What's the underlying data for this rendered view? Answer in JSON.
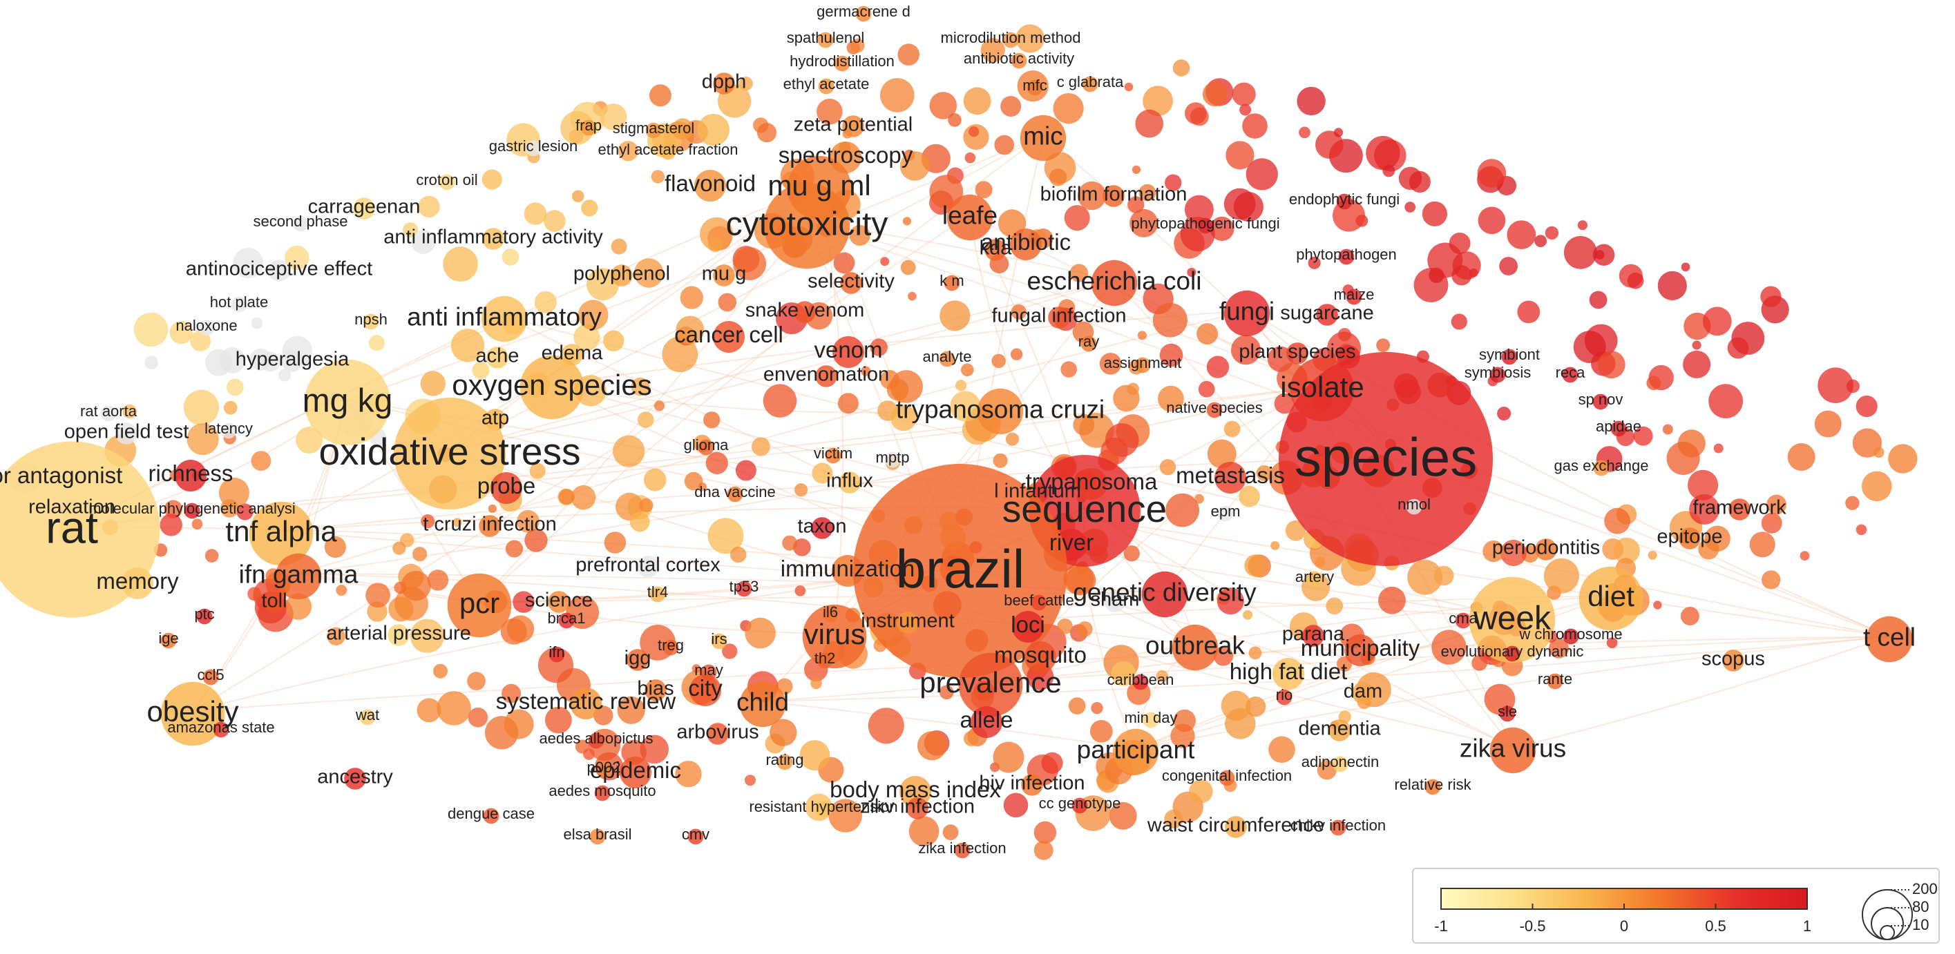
{
  "colors": {
    "scale": [
      "#fffac0",
      "#fde08a",
      "#f9b44c",
      "#f2762a",
      "#e8302a",
      "#d71920"
    ],
    "neutral": "#e6e6e6",
    "link": "#f6b48a"
  },
  "legend": {
    "color_scale": {
      "ticks": [
        "-1",
        "-0.5",
        "0",
        "0.5",
        "1"
      ]
    },
    "size_scale": {
      "ticks": [
        "200",
        "80",
        "10"
      ]
    }
  },
  "nodes": [
    {
      "label": "germacrene d",
      "score": 0.1,
      "weight": 1
    },
    {
      "label": "spathulenol",
      "score": 0.0,
      "weight": 1
    },
    {
      "label": "microdilution method",
      "score": 0.0,
      "weight": 1
    },
    {
      "label": "hydrodistillation",
      "score": 0.1,
      "weight": 1
    },
    {
      "label": "antibiotic activity",
      "score": 0.1,
      "weight": 1
    },
    {
      "label": "dpph",
      "score": 0.2,
      "weight": 2
    },
    {
      "label": "ethyl acetate",
      "score": 0.0,
      "weight": 1
    },
    {
      "label": "mfc",
      "score": 0.2,
      "weight": 1
    },
    {
      "label": "c glabrata",
      "score": 0.1,
      "weight": 1
    },
    {
      "label": "frap",
      "score": 0.0,
      "weight": 1
    },
    {
      "label": "stigmasterol",
      "score": 0.0,
      "weight": 1
    },
    {
      "label": "zeta potential",
      "score": 0.1,
      "weight": 2
    },
    {
      "label": "mic",
      "score": 0.2,
      "weight": 4
    },
    {
      "label": "gastric lesion",
      "score": -0.6,
      "weight": 1
    },
    {
      "label": "ethyl acetate fraction",
      "score": -0.2,
      "weight": 1
    },
    {
      "label": "spectroscopy",
      "score": 0.1,
      "weight": 3
    },
    {
      "label": "croton oil",
      "score": -0.5,
      "weight": 1
    },
    {
      "label": "flavonoid",
      "score": 0.0,
      "weight": 3
    },
    {
      "label": "mu g ml",
      "score": 0.2,
      "weight": 5
    },
    {
      "label": "biofilm formation",
      "score": 0.3,
      "weight": 2
    },
    {
      "label": "endophytic fungi",
      "score": 0.8,
      "weight": 1
    },
    {
      "label": "carrageenan",
      "score": -0.5,
      "weight": 2
    },
    {
      "label": "cytotoxicity",
      "score": 0.2,
      "weight": 6
    },
    {
      "label": "leafe",
      "score": 0.3,
      "weight": 4
    },
    {
      "label": "phytopathogenic fungi",
      "score": 0.8,
      "weight": 1
    },
    {
      "label": "second phase",
      "score": -0.6,
      "weight": 1
    },
    {
      "label": "anti inflammatory activity",
      "score": -0.3,
      "weight": 2
    },
    {
      "label": "antibiotic",
      "score": 0.3,
      "weight": 3
    },
    {
      "label": "kda",
      "score": 0.3,
      "weight": 2
    },
    {
      "label": "phytopathogen",
      "score": 0.8,
      "weight": 1
    },
    {
      "label": "antinociceptive effect",
      "score": -0.6,
      "weight": 2
    },
    {
      "label": "polyphenol",
      "score": -0.1,
      "weight": 2
    },
    {
      "label": "mu g",
      "score": 0.1,
      "weight": 2
    },
    {
      "label": "selectivity",
      "score": 0.3,
      "weight": 2
    },
    {
      "label": "k m",
      "score": 0.3,
      "weight": 1
    },
    {
      "label": "escherichia coli",
      "score": 0.4,
      "weight": 4
    },
    {
      "label": "maize",
      "score": 0.7,
      "weight": 1
    },
    {
      "label": "hot plate",
      "score": -0.7,
      "weight": 1
    },
    {
      "label": "snake venom",
      "score": 0.4,
      "weight": 2
    },
    {
      "label": "fungi",
      "score": 0.7,
      "weight": 4
    },
    {
      "label": "sugarcane",
      "score": 0.6,
      "weight": 2
    },
    {
      "label": "npsh",
      "score": -0.4,
      "weight": 1
    },
    {
      "label": "anti inflammatory",
      "score": -0.3,
      "weight": 4
    },
    {
      "label": "fungal infection",
      "score": 0.4,
      "weight": 2
    },
    {
      "label": "naloxone",
      "score": -0.7,
      "weight": 1
    },
    {
      "label": "cancer cell",
      "score": 0.4,
      "weight": 3
    },
    {
      "label": "ray",
      "score": 0.2,
      "weight": 1
    },
    {
      "label": "venom",
      "score": 0.5,
      "weight": 3
    },
    {
      "label": "plant species",
      "score": 0.5,
      "weight": 2
    },
    {
      "label": "hyperalgesia",
      "score": -0.6,
      "weight": 2
    },
    {
      "label": "ache",
      "score": -0.4,
      "weight": 2
    },
    {
      "label": "edema",
      "score": -0.3,
      "weight": 2
    },
    {
      "label": "analyte",
      "score": 0.1,
      "weight": 1
    },
    {
      "label": "assignment",
      "score": 0.1,
      "weight": 1
    },
    {
      "label": "symbiont",
      "score": 0.9,
      "weight": 1
    },
    {
      "label": "symbiosis",
      "score": 0.9,
      "weight": 1
    },
    {
      "label": "reca",
      "score": 0.9,
      "weight": 1
    },
    {
      "label": "envenomation",
      "score": 0.4,
      "weight": 2
    },
    {
      "label": "isolate",
      "score": 0.5,
      "weight": 5
    },
    {
      "label": "mg kg",
      "score": -0.5,
      "weight": 6
    },
    {
      "label": "oxygen species",
      "score": -0.2,
      "weight": 5
    },
    {
      "label": "sp nov",
      "score": 0.9,
      "weight": 1
    },
    {
      "label": "rat aorta",
      "score": -0.8,
      "weight": 1
    },
    {
      "label": "atp",
      "score": -0.2,
      "weight": 2
    },
    {
      "label": "trypanosoma cruzi",
      "score": 0.1,
      "weight": 4
    },
    {
      "label": "native species",
      "score": 0.4,
      "weight": 1
    },
    {
      "label": "open field test",
      "score": -0.7,
      "weight": 2
    },
    {
      "label": "latency",
      "score": -0.6,
      "weight": 1
    },
    {
      "label": "apidae",
      "score": 0.9,
      "weight": 1
    },
    {
      "label": "species",
      "score": 0.7,
      "weight": 10
    },
    {
      "label": "glioma",
      "score": 0.3,
      "weight": 1
    },
    {
      "label": "victim",
      "score": 0.2,
      "weight": 1
    },
    {
      "label": "oxidative stress",
      "score": -0.3,
      "weight": 7
    },
    {
      "label": "trypanosoma",
      "score": 0.1,
      "weight": 3
    },
    {
      "label": "mptp",
      "score": -0.8,
      "weight": 1
    },
    {
      "label": "receptor antagonist",
      "score": -0.6,
      "weight": 3
    },
    {
      "label": "richness",
      "score": 0.8,
      "weight": 3
    },
    {
      "label": "gas exchange",
      "score": 0.0,
      "weight": 1
    },
    {
      "label": "influx",
      "score": -0.3,
      "weight": 2
    },
    {
      "label": "probe",
      "score": 0.5,
      "weight": 3
    },
    {
      "label": "metastasis",
      "score": 0.5,
      "weight": 3
    },
    {
      "label": "dna vaccine",
      "score": 0.2,
      "weight": 1
    },
    {
      "label": "l infantum",
      "score": 0.2,
      "weight": 2
    },
    {
      "label": "sequence",
      "score": 0.7,
      "weight": 7
    },
    {
      "label": "nmol",
      "score": -0.7,
      "weight": 1
    },
    {
      "label": "relaxation",
      "score": -0.6,
      "weight": 2
    },
    {
      "label": "molecular phylogenetic analysi",
      "score": 0.9,
      "weight": 1
    },
    {
      "label": "framework",
      "score": 0.4,
      "weight": 2
    },
    {
      "label": "epm",
      "score": -0.7,
      "weight": 1
    },
    {
      "label": "rat",
      "score": -0.5,
      "weight": 9
    },
    {
      "label": "tnf alpha",
      "score": -0.2,
      "weight": 5
    },
    {
      "label": "t cruzi infection",
      "score": 0.2,
      "weight": 2
    },
    {
      "label": "taxon",
      "score": 0.9,
      "weight": 2
    },
    {
      "label": "epitope",
      "score": 0.2,
      "weight": 2
    },
    {
      "label": "river",
      "score": 0.7,
      "weight": 3
    },
    {
      "label": "periodontitis",
      "score": 0.2,
      "weight": 2
    },
    {
      "label": "prefrontal cortex",
      "score": -0.6,
      "weight": 2
    },
    {
      "label": "memory",
      "score": -0.4,
      "weight": 3
    },
    {
      "label": "ifn gamma",
      "score": 0.3,
      "weight": 4
    },
    {
      "label": "tp53",
      "score": 0.6,
      "weight": 1
    },
    {
      "label": "immunization",
      "score": 0.2,
      "weight": 3
    },
    {
      "label": "brazil",
      "score": 0.3,
      "weight": 10
    },
    {
      "label": "artery",
      "score": -0.3,
      "weight": 1
    },
    {
      "label": "toll",
      "score": 0.4,
      "weight": 2
    },
    {
      "label": "tlr4",
      "score": -0.2,
      "weight": 1
    },
    {
      "label": "science",
      "score": 0.1,
      "weight": 2
    },
    {
      "label": "beef cattle",
      "score": 0.5,
      "weight": 1
    },
    {
      "label": "genetic diversity",
      "score": 0.8,
      "weight": 4
    },
    {
      "label": "diet",
      "score": -0.2,
      "weight": 5
    },
    {
      "label": "pcr",
      "score": 0.2,
      "weight": 5
    },
    {
      "label": "sham",
      "score": -0.6,
      "weight": 2
    },
    {
      "label": "ptc",
      "score": 0.8,
      "weight": 1
    },
    {
      "label": "il6",
      "score": -0.2,
      "weight": 1
    },
    {
      "label": "brca1",
      "score": 0.7,
      "weight": 1
    },
    {
      "label": "instrument",
      "score": 0.0,
      "weight": 2
    },
    {
      "label": "loci",
      "score": 0.7,
      "weight": 3
    },
    {
      "label": "cma",
      "score": 0.6,
      "weight": 1
    },
    {
      "label": "week",
      "score": -0.3,
      "weight": 6
    },
    {
      "label": "arterial pressure",
      "score": -0.5,
      "weight": 2
    },
    {
      "label": "ige",
      "score": 0.2,
      "weight": 1
    },
    {
      "label": "virus",
      "score": 0.3,
      "weight": 5
    },
    {
      "label": "outbreak",
      "score": 0.3,
      "weight": 4
    },
    {
      "label": "parana",
      "score": 0.6,
      "weight": 2
    },
    {
      "label": "w chromosome",
      "score": 1.0,
      "weight": 1
    },
    {
      "label": "t cell",
      "score": 0.3,
      "weight": 4
    },
    {
      "label": "irs",
      "score": -0.2,
      "weight": 1
    },
    {
      "label": "ifn",
      "score": 0.6,
      "weight": 1
    },
    {
      "label": "treg",
      "score": 0.3,
      "weight": 1
    },
    {
      "label": "igg",
      "score": 0.3,
      "weight": 2
    },
    {
      "label": "mosquito",
      "score": 0.4,
      "weight": 3
    },
    {
      "label": "municipality",
      "score": 0.4,
      "weight": 3
    },
    {
      "label": "evolutionary dynamic",
      "score": 0.9,
      "weight": 1
    },
    {
      "label": "scopus",
      "score": 0.1,
      "weight": 2
    },
    {
      "label": "th2",
      "score": 0.3,
      "weight": 1
    },
    {
      "label": "may",
      "score": 0.4,
      "weight": 1
    },
    {
      "label": "high fat diet",
      "score": -0.3,
      "weight": 3
    },
    {
      "label": "ccl5",
      "score": 0.3,
      "weight": 1
    },
    {
      "label": "bias",
      "score": 0.2,
      "weight": 2
    },
    {
      "label": "prevalence",
      "score": 0.4,
      "weight": 5
    },
    {
      "label": "caribbean",
      "score": 0.7,
      "weight": 1
    },
    {
      "label": "rante",
      "score": 0.3,
      "weight": 1
    },
    {
      "label": "city",
      "score": 0.4,
      "weight": 3
    },
    {
      "label": "rio",
      "score": 0.5,
      "weight": 1
    },
    {
      "label": "dam",
      "score": -0.1,
      "weight": 2
    },
    {
      "label": "systematic review",
      "score": 0.0,
      "weight": 3
    },
    {
      "label": "child",
      "score": 0.2,
      "weight": 4
    },
    {
      "label": "allele",
      "score": 0.6,
      "weight": 3
    },
    {
      "label": "min day",
      "score": -0.5,
      "weight": 1
    },
    {
      "label": "obesity",
      "score": -0.2,
      "weight": 5
    },
    {
      "label": "wat",
      "score": -0.4,
      "weight": 1
    },
    {
      "label": "amazonas state",
      "score": 0.6,
      "weight": 1
    },
    {
      "label": "sle",
      "score": 0.8,
      "weight": 1
    },
    {
      "label": "arbovirus",
      "score": 0.4,
      "weight": 2
    },
    {
      "label": "dementia",
      "score": -0.1,
      "weight": 2
    },
    {
      "label": "aedes albopictus",
      "score": 0.5,
      "weight": 1
    },
    {
      "label": "zika virus",
      "score": 0.3,
      "weight": 4
    },
    {
      "label": "participant",
      "score": 0.0,
      "weight": 4
    },
    {
      "label": "rating",
      "score": 0.0,
      "weight": 1
    },
    {
      "label": "p002",
      "score": 0.1,
      "weight": 1
    },
    {
      "label": "epidemic",
      "score": 0.4,
      "weight": 3
    },
    {
      "label": "adiponectin",
      "score": -0.4,
      "weight": 1
    },
    {
      "label": "ancestry",
      "score": 0.6,
      "weight": 2
    },
    {
      "label": "congenital infection",
      "score": 0.3,
      "weight": 1
    },
    {
      "label": "hiv infection",
      "score": 0.2,
      "weight": 2
    },
    {
      "label": "body mass index",
      "score": -0.1,
      "weight": 3
    },
    {
      "label": "aedes mosquito",
      "score": 0.5,
      "weight": 1
    },
    {
      "label": "relative risk",
      "score": 0.2,
      "weight": 1
    },
    {
      "label": "zikv infection",
      "score": 0.4,
      "weight": 2
    },
    {
      "label": "cc genotype",
      "score": 0.6,
      "weight": 1
    },
    {
      "label": "resistant hypertension",
      "score": -0.3,
      "weight": 1
    },
    {
      "label": "dengue case",
      "score": 0.4,
      "weight": 1
    },
    {
      "label": "chikv infection",
      "score": 0.4,
      "weight": 1
    },
    {
      "label": "waist circumference",
      "score": -0.1,
      "weight": 2
    },
    {
      "label": "elsa brasil",
      "score": 0.1,
      "weight": 1
    },
    {
      "label": "cmv",
      "score": 0.5,
      "weight": 1
    },
    {
      "label": "zika infection",
      "score": 0.4,
      "weight": 1
    }
  ]
}
